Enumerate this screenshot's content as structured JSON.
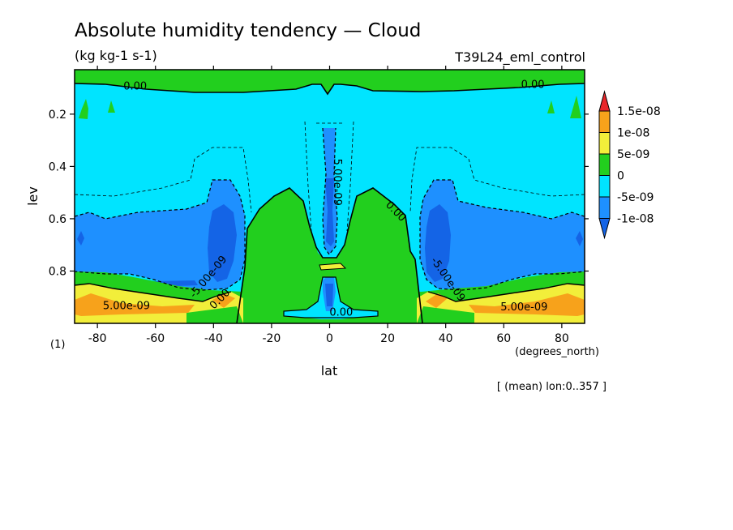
{
  "chart_data": {
    "type": "contour",
    "title": "Absolute humidity tendency — Cloud",
    "units": "(kg kg-1 s-1)",
    "experiment": "T39L24_eml_control",
    "xlabel": "lat",
    "x_units": "(degrees_north)",
    "ylabel": "lev",
    "y_units": "(1)",
    "xlim": [
      -87.86,
      87.86
    ],
    "ylim": [
      1.0,
      0.03
    ],
    "x_ticks": [
      -80,
      -60,
      -40,
      -20,
      0,
      20,
      40,
      60,
      80
    ],
    "x_tick_labels": [
      "-80",
      "-60",
      "-40",
      "-20",
      "0",
      "20",
      "40",
      "60",
      "80"
    ],
    "y_ticks": [
      0.2,
      0.4,
      0.6,
      0.8
    ],
    "y_tick_labels": [
      "0.2",
      "0.4",
      "0.6",
      "0.8"
    ],
    "note": "[ (mean) lon:0..357 ]",
    "colorbar": {
      "levels": [
        "1.5e-08",
        "1e-08",
        "5e-09",
        "0",
        "-5e-09",
        "-1e-08"
      ],
      "colors": [
        "#e8262a",
        "#f7a21b",
        "#f2ee3a",
        "#22cf1e",
        "#00e4ff",
        "#1e90ff",
        "#1464e6"
      ]
    },
    "contour_labels": [
      {
        "text": "0.00",
        "lat": -67,
        "lev": 0.09
      },
      {
        "text": "0.00",
        "lat": 70,
        "lev": 0.085
      },
      {
        "text": "5.00e-09",
        "lat": 3,
        "lev": 0.46,
        "rotate": 90
      },
      {
        "text": "0.00",
        "lat": 23,
        "lev": 0.57,
        "rotate": 45
      },
      {
        "text": "-5.00e-09",
        "lat": -42,
        "lev": 0.82,
        "rotate": -50
      },
      {
        "text": "-5.00e-09",
        "lat": 41,
        "lev": 0.83,
        "rotate": 55
      },
      {
        "text": "0.00",
        "lat": -38,
        "lev": 0.905,
        "rotate": -45
      },
      {
        "text": "5.00e-09",
        "lat": -70,
        "lev": 0.93
      },
      {
        "text": "5.00e-09",
        "lat": 67,
        "lev": 0.935
      },
      {
        "text": "0.00",
        "lat": 4,
        "lev": 0.955
      }
    ]
  }
}
